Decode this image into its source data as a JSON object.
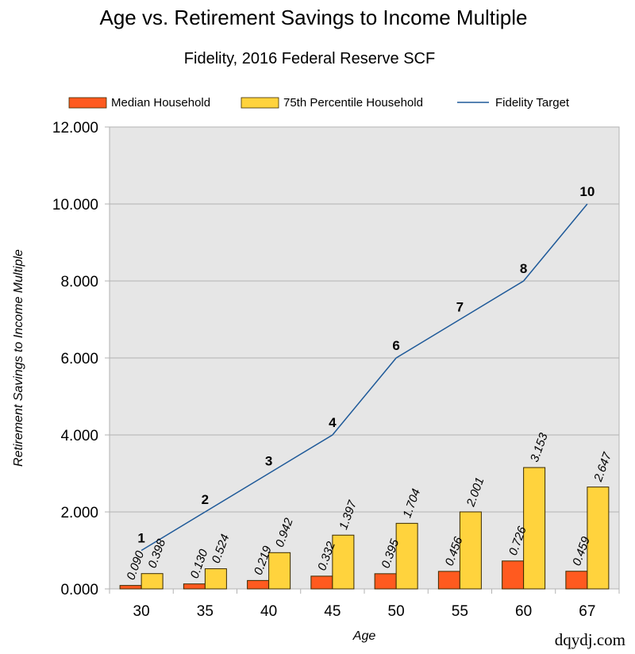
{
  "watermark": "dqydj.com",
  "chart_data": {
    "type": "bar",
    "title": "Age vs. Retirement Savings to Income Multiple",
    "subtitle": "Fidelity, 2016 Federal Reserve SCF",
    "xlabel": "Age",
    "ylabel": "Retirement Savings to Income Multiple",
    "ylim": [
      0,
      12
    ],
    "ytick_labels": [
      "0.000",
      "2.000",
      "4.000",
      "6.000",
      "8.000",
      "10.000",
      "12.000"
    ],
    "yticks": [
      0,
      2,
      4,
      6,
      8,
      10,
      12
    ],
    "grid": true,
    "legend_position": "top",
    "categories": [
      "30",
      "35",
      "40",
      "45",
      "50",
      "55",
      "60",
      "67"
    ],
    "series": [
      {
        "name": "Median Household",
        "kind": "bar",
        "color": "#ff5a1f",
        "values": [
          0.09,
          0.13,
          0.219,
          0.332,
          0.395,
          0.456,
          0.726,
          0.459
        ],
        "labels": [
          "0.090",
          "0.130",
          "0.219",
          "0.332",
          "0.395",
          "0.456",
          "0.726",
          "0.459"
        ]
      },
      {
        "name": "75th Percentile Household",
        "kind": "bar",
        "color": "#ffd33d",
        "values": [
          0.398,
          0.524,
          0.942,
          1.397,
          1.704,
          2.001,
          3.153,
          2.647
        ],
        "labels": [
          "0.398",
          "0.524",
          "0.942",
          "1.397",
          "1.704",
          "2.001",
          "3.153",
          "2.647"
        ]
      },
      {
        "name": "Fidelity Target",
        "kind": "line",
        "color": "#1f5a99",
        "values": [
          1,
          2,
          3,
          4,
          6,
          7,
          8,
          10
        ],
        "labels": [
          "1",
          "2",
          "3",
          "4",
          "6",
          "7",
          "8",
          "10"
        ]
      }
    ]
  }
}
